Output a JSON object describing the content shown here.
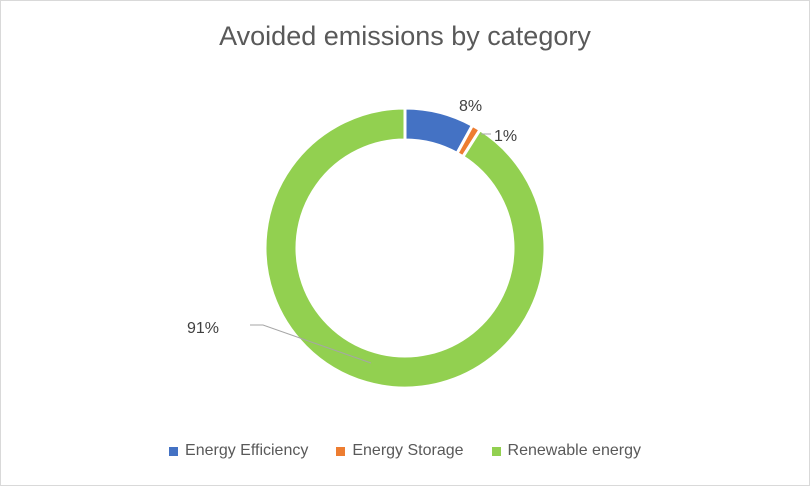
{
  "chart_data": {
    "type": "pie",
    "variant": "donut",
    "title": "Avoided emissions by category",
    "categories": [
      "Energy Efficiency",
      "Energy Storage",
      "Renewable energy"
    ],
    "values": [
      8,
      1,
      91
    ],
    "data_labels": [
      "8%",
      "1%",
      "91%"
    ],
    "colors": [
      "#4472c4",
      "#ed7d31",
      "#92d050"
    ],
    "legend_position": "bottom"
  }
}
